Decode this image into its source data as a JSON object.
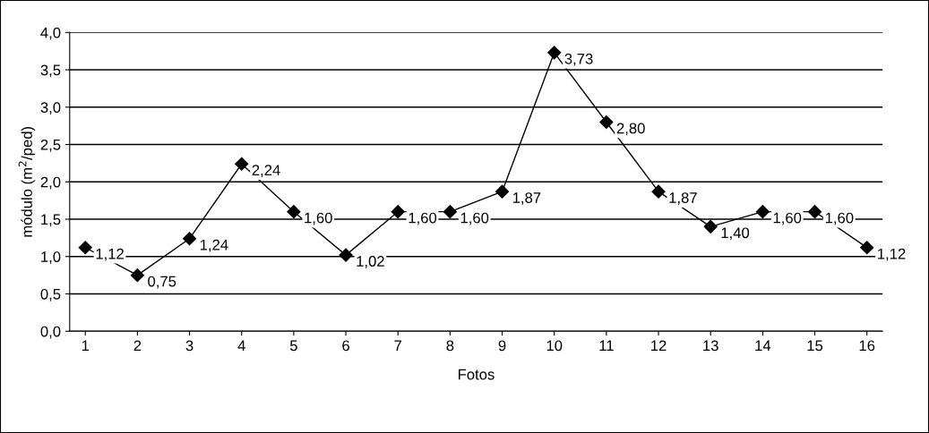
{
  "chart_data": {
    "type": "line",
    "xlabel": "Fotos",
    "ylabel": "módulo (m$^{2}$/ped)",
    "categories": [
      "1",
      "2",
      "3",
      "4",
      "5",
      "6",
      "7",
      "8",
      "9",
      "10",
      "11",
      "12",
      "13",
      "14",
      "15",
      "16"
    ],
    "series": [
      {
        "color": "#000000",
        "values": [
          1.12,
          0.75,
          1.24,
          2.24,
          1.6,
          1.02,
          1.6,
          1.6,
          1.87,
          3.73,
          2.8,
          1.87,
          1.4,
          1.6,
          1.6,
          1.12
        ],
        "value_labels": [
          "1,12",
          "0,75",
          "1,24",
          "2,24",
          "1,60",
          "1,02",
          "1,60",
          "1,60",
          "1,87",
          "3,73",
          "2,80",
          "1,87",
          "1,40",
          "1,60",
          "1,60",
          "1,12"
        ]
      }
    ],
    "ylim": [
      0,
      4
    ],
    "yticks": [
      {
        "value": 0,
        "label": "0,0"
      },
      {
        "value": 0.5,
        "label": "0,5"
      },
      {
        "value": 1,
        "label": "1,0"
      },
      {
        "value": 1.5,
        "label": "1,5"
      },
      {
        "value": 2,
        "label": "2,0"
      },
      {
        "value": 2.5,
        "label": "2,5"
      },
      {
        "value": 3,
        "label": "3,0"
      },
      {
        "value": 3.5,
        "label": "3,5"
      },
      {
        "value": 4,
        "label": "4,0"
      }
    ],
    "grid": "y",
    "legend": false,
    "marker": "diamond",
    "line_style": "solid"
  }
}
